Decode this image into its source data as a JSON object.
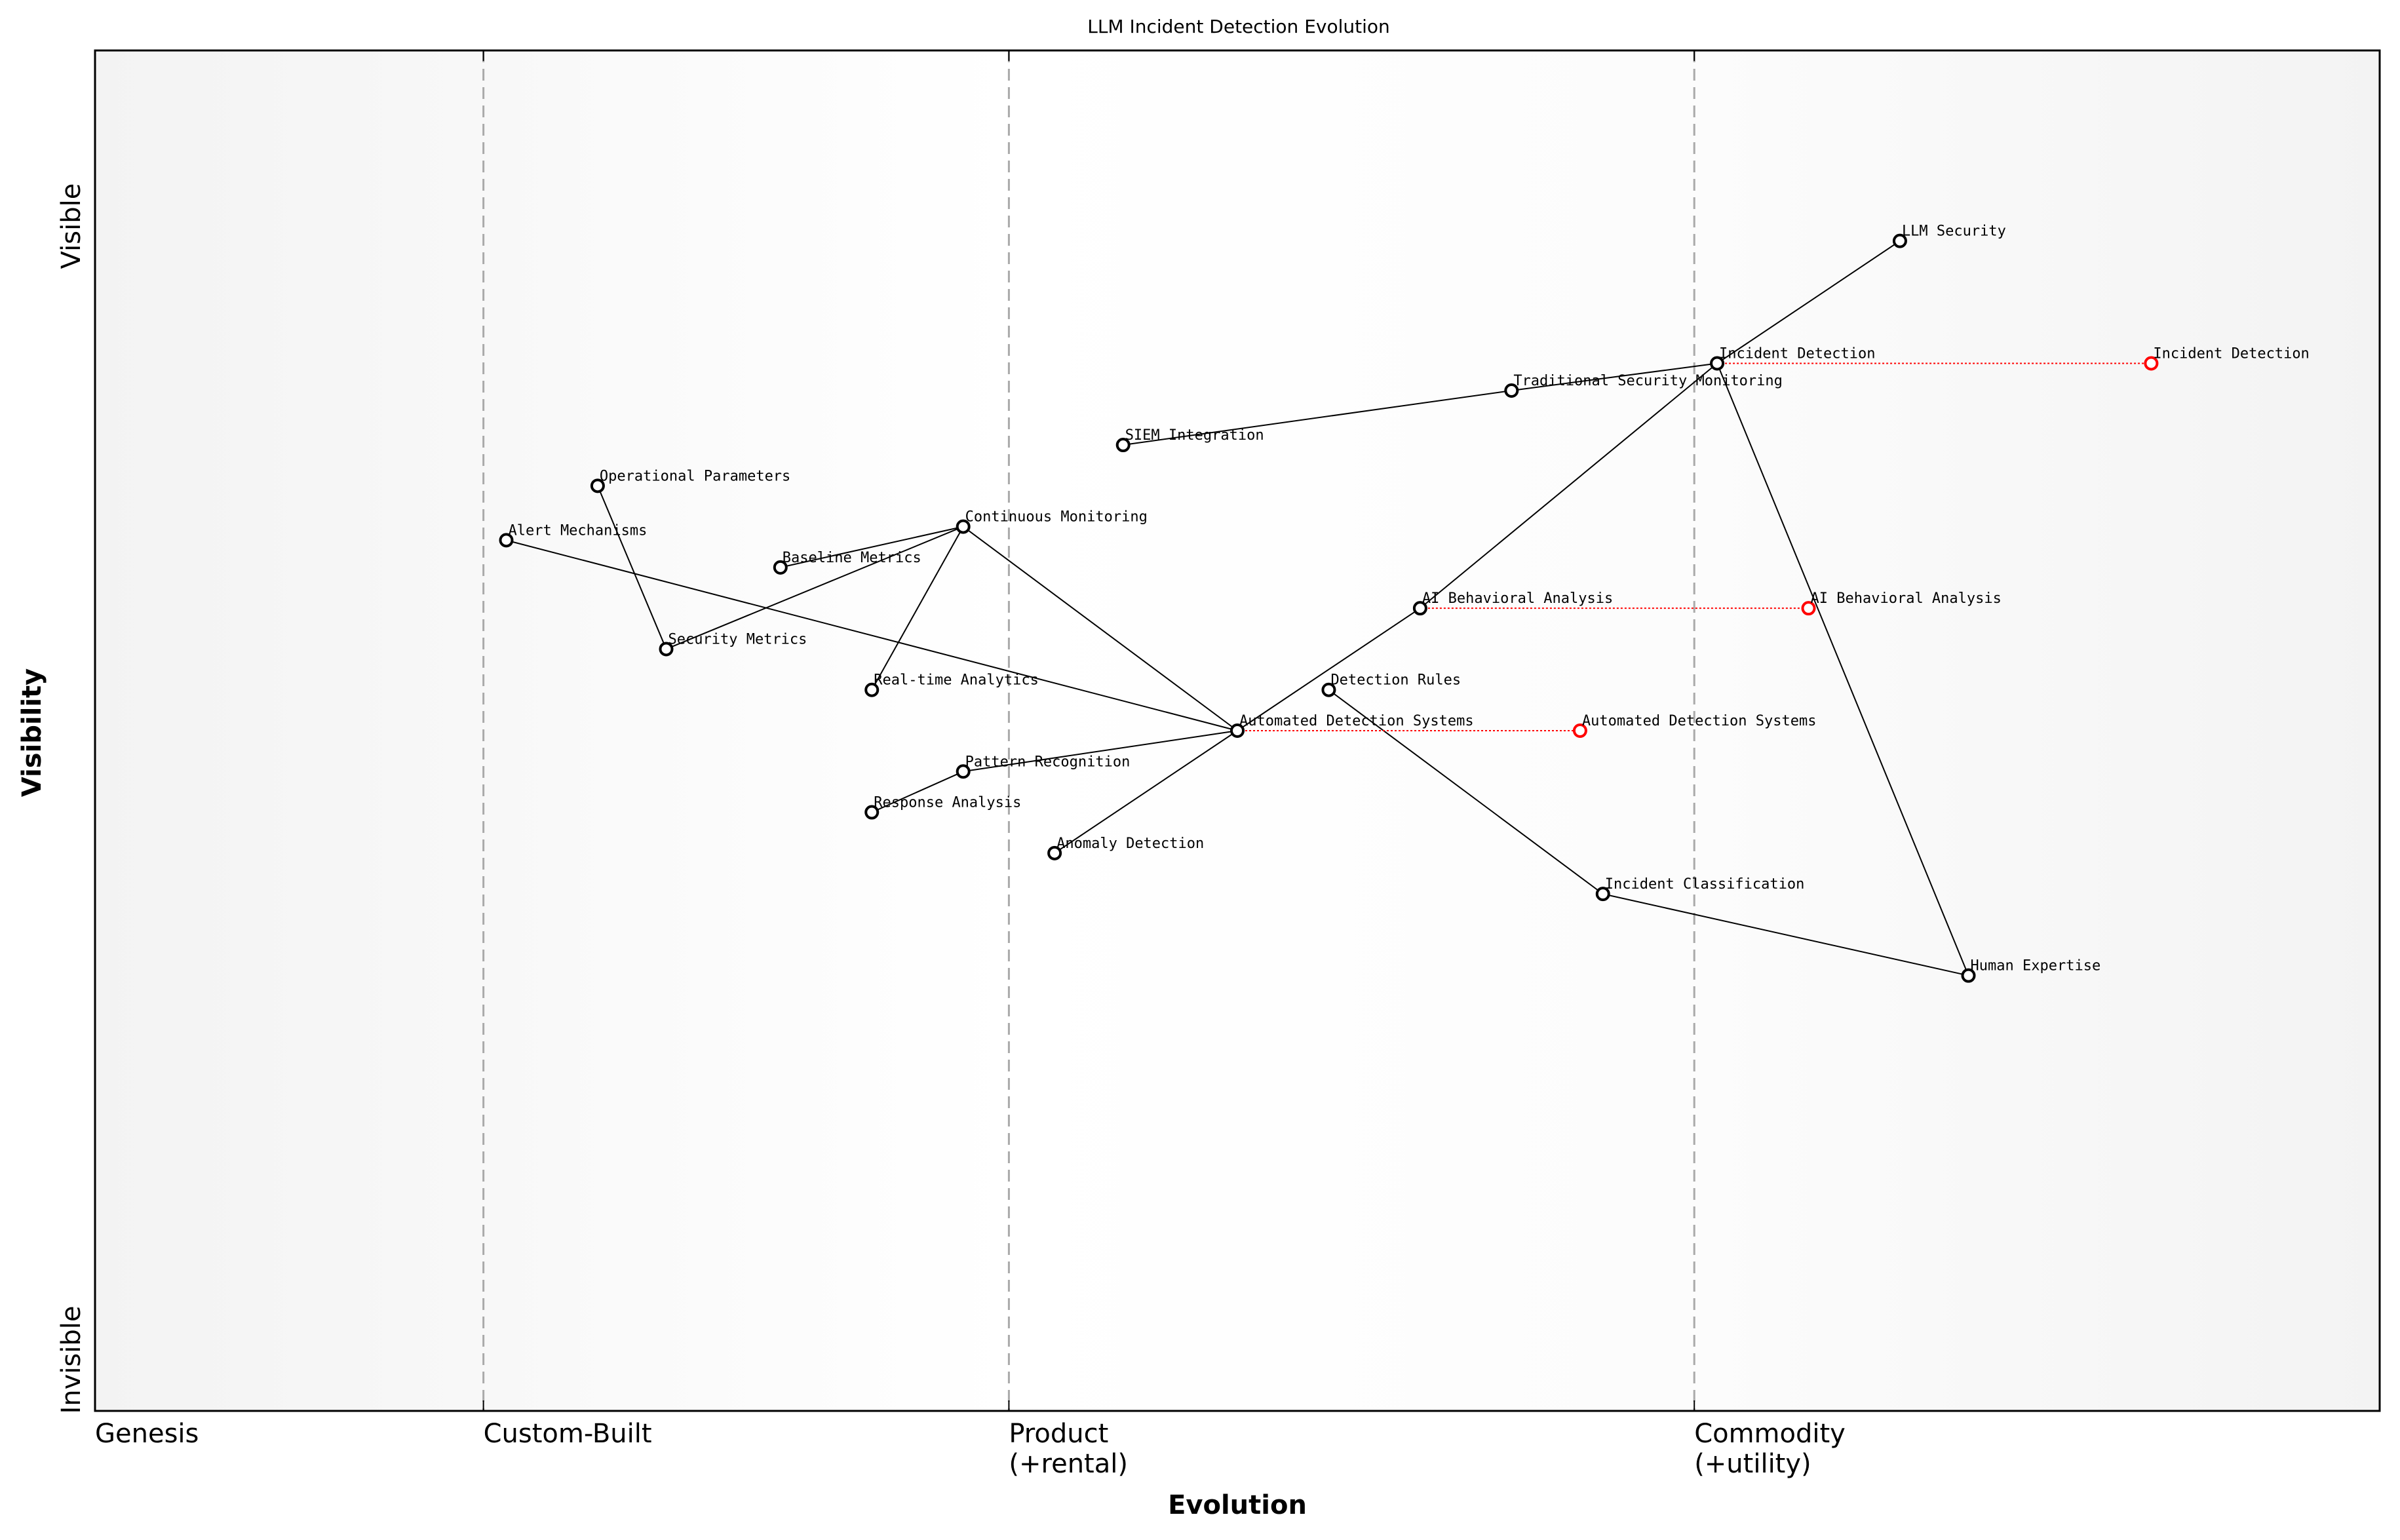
{
  "chart_data": {
    "type": "wardley-map",
    "title": "LLM Incident Detection Evolution",
    "xlabel": "Evolution",
    "ylabel": "Visibility",
    "xlim": [
      0,
      1
    ],
    "ylim": [
      0,
      1
    ],
    "y_tick_labels": {
      "top": "Visible",
      "bottom": "Invisible"
    },
    "stages": [
      {
        "x": 0.0,
        "label": "Genesis"
      },
      {
        "x": 0.17,
        "label": "Custom-Built"
      },
      {
        "x": 0.4,
        "label": "Product\n(+rental)"
      },
      {
        "x": 0.7,
        "label": "Commodity\n(+utility)"
      }
    ],
    "components": [
      {
        "name": "LLM Security",
        "x": 0.79,
        "y": 0.86
      },
      {
        "name": "Incident Detection",
        "x": 0.71,
        "y": 0.77
      },
      {
        "name": "Traditional Security Monitoring",
        "x": 0.62,
        "y": 0.75
      },
      {
        "name": "SIEM Integration",
        "x": 0.45,
        "y": 0.71
      },
      {
        "name": "Operational Parameters",
        "x": 0.22,
        "y": 0.68
      },
      {
        "name": "Continuous Monitoring",
        "x": 0.38,
        "y": 0.65
      },
      {
        "name": "Alert Mechanisms",
        "x": 0.18,
        "y": 0.64
      },
      {
        "name": "Baseline Metrics",
        "x": 0.3,
        "y": 0.62
      },
      {
        "name": "AI Behavioral Analysis",
        "x": 0.58,
        "y": 0.59
      },
      {
        "name": "Security Metrics",
        "x": 0.25,
        "y": 0.56
      },
      {
        "name": "Real-time Analytics",
        "x": 0.34,
        "y": 0.53
      },
      {
        "name": "Detection Rules",
        "x": 0.54,
        "y": 0.53
      },
      {
        "name": "Automated Detection Systems",
        "x": 0.5,
        "y": 0.5
      },
      {
        "name": "Pattern Recognition",
        "x": 0.38,
        "y": 0.47
      },
      {
        "name": "Response Analysis",
        "x": 0.34,
        "y": 0.44
      },
      {
        "name": "Anomaly Detection",
        "x": 0.42,
        "y": 0.41
      },
      {
        "name": "Incident Classification",
        "x": 0.66,
        "y": 0.38
      },
      {
        "name": "Human Expertise",
        "x": 0.82,
        "y": 0.32
      }
    ],
    "links": [
      [
        "LLM Security",
        "Incident Detection"
      ],
      [
        "Incident Detection",
        "Traditional Security Monitoring"
      ],
      [
        "Traditional Security Monitoring",
        "SIEM Integration"
      ],
      [
        "Incident Detection",
        "AI Behavioral Analysis"
      ],
      [
        "Incident Detection",
        "Human Expertise"
      ],
      [
        "AI Behavioral Analysis",
        "Automated Detection Systems"
      ],
      [
        "Automated Detection Systems",
        "Continuous Monitoring"
      ],
      [
        "Automated Detection Systems",
        "Alert Mechanisms"
      ],
      [
        "Automated Detection Systems",
        "Pattern Recognition"
      ],
      [
        "Automated Detection Systems",
        "Anomaly Detection"
      ],
      [
        "Detection Rules",
        "Incident Classification"
      ],
      [
        "Incident Classification",
        "Human Expertise"
      ],
      [
        "Continuous Monitoring",
        "Baseline Metrics"
      ],
      [
        "Continuous Monitoring",
        "Security Metrics"
      ],
      [
        "Continuous Monitoring",
        "Real-time Analytics"
      ],
      [
        "Operational Parameters",
        "Security Metrics"
      ],
      [
        "Pattern Recognition",
        "Response Analysis"
      ]
    ],
    "evolutions": [
      {
        "name": "Incident Detection",
        "from_x": 0.71,
        "to_x": 0.9,
        "y": 0.77
      },
      {
        "name": "AI Behavioral Analysis",
        "from_x": 0.58,
        "to_x": 0.75,
        "y": 0.59
      },
      {
        "name": "Automated Detection Systems",
        "from_x": 0.5,
        "to_x": 0.65,
        "y": 0.5
      }
    ],
    "colors": {
      "component": "#000000",
      "evolved": "#ff0000",
      "stage_line": "#aaaaaa"
    },
    "grid": false
  }
}
